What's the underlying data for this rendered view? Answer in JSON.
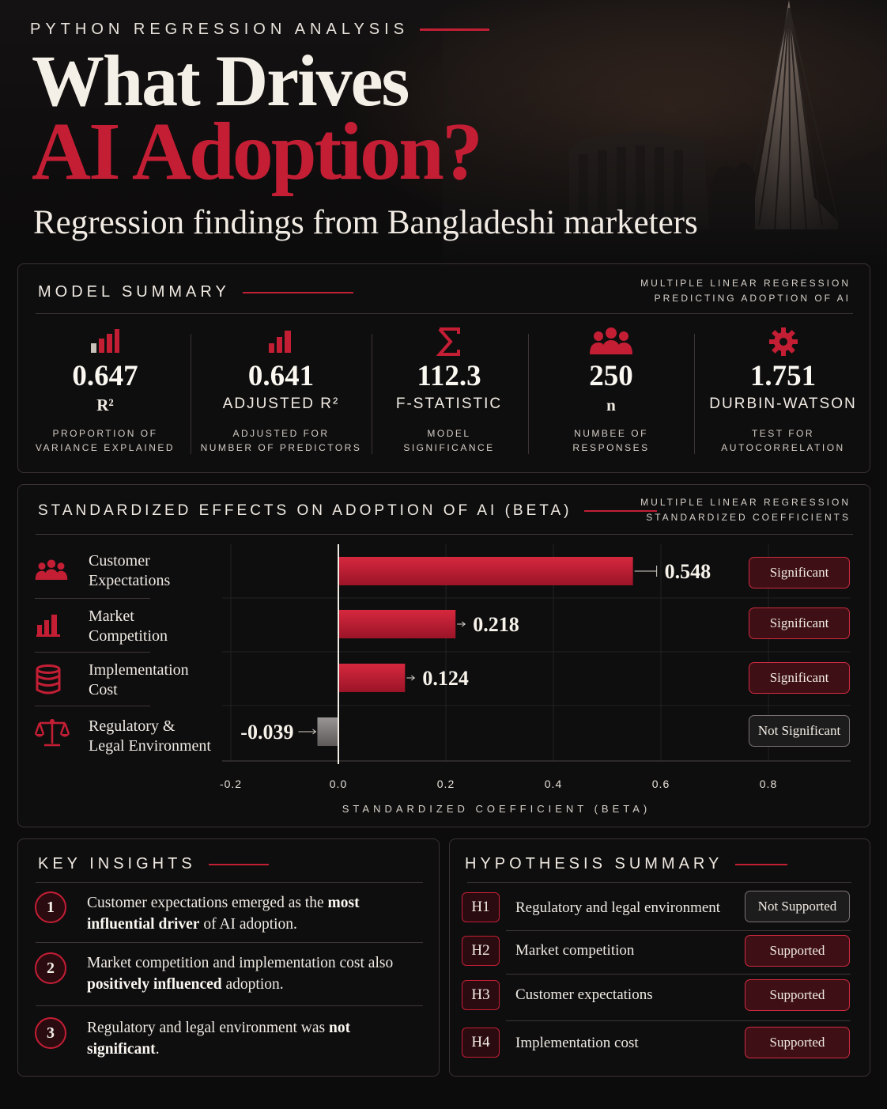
{
  "header": {
    "kicker": "PYTHON REGRESSION ANALYSIS",
    "title_line1": "What Drives",
    "title_line2": "AI Adoption?",
    "subtitle": "Regression findings from Bangladeshi marketers"
  },
  "model_summary": {
    "title": "MODEL SUMMARY",
    "note_line1": "MULTIPLE LINEAR REGRESSION",
    "note_line2": "PREDICTING ADOPTION OF AI",
    "metrics": [
      {
        "icon": "bar-chart-icon",
        "value": "0.647",
        "label": "R²",
        "desc1": "PROPORTION OF",
        "desc2": "VARIANCE EXPLAINED"
      },
      {
        "icon": "bar-chart-icon",
        "value": "0.641",
        "label": "ADJUSTED R²",
        "desc1": "ADJUSTED FOR",
        "desc2": "NUMBER OF PREDICTORS"
      },
      {
        "icon": "sigma-icon",
        "value": "112.3",
        "label": "F-STATISTIC",
        "desc1": "MODEL",
        "desc2": "SIGNIFICANCE"
      },
      {
        "icon": "people-icon",
        "value": "250",
        "label": "n",
        "desc1": "NUMBEE OF",
        "desc2": "RESPONSES"
      },
      {
        "icon": "gear-icon",
        "value": "1.751",
        "label": "DURBIN-WATSON",
        "desc1": "TEST FOR",
        "desc2": "AUTOCORRELATION"
      }
    ]
  },
  "effects": {
    "title": "STANDARDIZED EFFECTS ON ADOPTION OF AI (BETA)",
    "note_line1": "MULTIPLE LINEAR REGRESSION",
    "note_line2": "STANDARDIZED COEFFICIENTS",
    "rows": [
      {
        "icon": "people-icon",
        "label_line1": "Customer",
        "label_line2": "Expectations",
        "badge": "Significant"
      },
      {
        "icon": "bar-chart-icon",
        "label_line1": "Market",
        "label_line2": "Competition",
        "badge": "Significant"
      },
      {
        "icon": "database-icon",
        "label_line1": "Implementation",
        "label_line2": "Cost",
        "badge": "Significant"
      },
      {
        "icon": "scales-icon",
        "label_line1": "Regulatory &",
        "label_line2": "Legal Environment",
        "badge": "Not Significant"
      }
    ]
  },
  "chart_data": {
    "type": "bar",
    "orientation": "horizontal",
    "categories": [
      "Customer Expectations",
      "Market Competition",
      "Implementation Cost",
      "Regulatory & Legal Environment"
    ],
    "values": [
      0.548,
      0.218,
      0.124,
      -0.039
    ],
    "value_labels": [
      "0.548",
      "0.218",
      "0.124",
      "-0.039"
    ],
    "xlabel": "STANDARDIZED COEFFICIENT (BETA)",
    "xlim": [
      -0.2,
      0.8
    ],
    "x_ticks": [
      "-0.2",
      "0.0",
      "0.2",
      "0.4",
      "0.6",
      "0.8"
    ],
    "grid": true,
    "colors": {
      "positive": "#c41e35",
      "negative": "#8a8585"
    }
  },
  "insights": {
    "title": "KEY INSIGHTS",
    "items": [
      {
        "num": "1",
        "pre": "Customer expectations emerged as the ",
        "bold": "most influential driver",
        "post": " of AI adoption."
      },
      {
        "num": "2",
        "pre": "Market competition and implementation cost also ",
        "bold": "positively influenced",
        "post": " adoption."
      },
      {
        "num": "3",
        "pre": "Regulatory and legal environment was ",
        "bold": "not significant",
        "post": "."
      }
    ]
  },
  "hypotheses": {
    "title": "HYPOTHESIS SUMMARY",
    "items": [
      {
        "code": "H1",
        "text": "Regulatory and legal environment",
        "result": "Not Supported"
      },
      {
        "code": "H2",
        "text": "Market competition",
        "result": "Supported"
      },
      {
        "code": "H3",
        "text": "Customer expectations",
        "result": "Supported"
      },
      {
        "code": "H4",
        "text": "Implementation cost",
        "result": "Supported"
      }
    ]
  },
  "colors": {
    "accent": "#c41e35",
    "background": "#0c0c0d",
    "text": "#efe9e2"
  }
}
